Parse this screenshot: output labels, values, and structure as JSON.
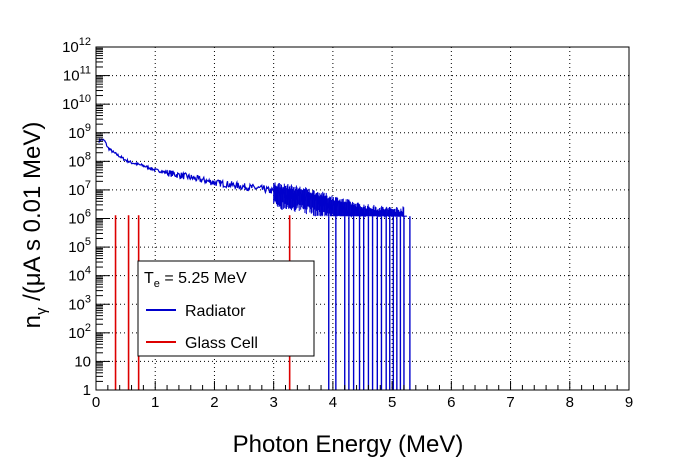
{
  "chart_data": {
    "type": "histogram",
    "xlabel": "Photon Energy (MeV)",
    "ylabel_parts": [
      "n",
      "γ",
      " /(μA s 0.01 MeV)"
    ],
    "xlim": [
      0,
      9
    ],
    "ylim": [
      1,
      1000000000000
    ],
    "yscale": "log",
    "grid": true,
    "x_ticks": [
      0,
      1,
      2,
      3,
      4,
      5,
      6,
      7,
      8,
      9
    ],
    "y_ticks": [
      {
        "value": 1,
        "base": "1",
        "exp": ""
      },
      {
        "value": 10,
        "base": "10",
        "exp": ""
      },
      {
        "value": 100,
        "base": "10",
        "exp": "2"
      },
      {
        "value": 1000,
        "base": "10",
        "exp": "3"
      },
      {
        "value": 10000,
        "base": "10",
        "exp": "4"
      },
      {
        "value": 100000,
        "base": "10",
        "exp": "5"
      },
      {
        "value": 1000000,
        "base": "10",
        "exp": "6"
      },
      {
        "value": 10000000,
        "base": "10",
        "exp": "7"
      },
      {
        "value": 100000000,
        "base": "10",
        "exp": "8"
      },
      {
        "value": 1000000000,
        "base": "10",
        "exp": "9"
      },
      {
        "value": 10000000000,
        "base": "10",
        "exp": "10"
      },
      {
        "value": 100000000000,
        "base": "10",
        "exp": "11"
      },
      {
        "value": 1000000000000,
        "base": "10",
        "exp": "12"
      }
    ],
    "series": [
      {
        "name": "Radiator",
        "color": "#0000cc",
        "points": [
          [
            0.05,
            500000000
          ],
          [
            0.1,
            600000000
          ],
          [
            0.15,
            500000000
          ],
          [
            0.2,
            300000000
          ],
          [
            0.3,
            200000000
          ],
          [
            0.4,
            150000000
          ],
          [
            0.5,
            110000000
          ],
          [
            0.6,
            90000000
          ],
          [
            0.8,
            70000000
          ],
          [
            1.0,
            50000000
          ],
          [
            1.2,
            40000000
          ],
          [
            1.5,
            30000000
          ],
          [
            1.8,
            22000000
          ],
          [
            2.0,
            18000000
          ],
          [
            2.3,
            15000000
          ],
          [
            2.5,
            13000000
          ],
          [
            2.8,
            11000000
          ],
          [
            3.0,
            9000000
          ],
          [
            3.3,
            7000000
          ],
          [
            3.5,
            6000000
          ],
          [
            3.8,
            4000000
          ],
          [
            4.0,
            3000000
          ],
          [
            4.3,
            2000000
          ],
          [
            4.5,
            1500000
          ],
          [
            4.8,
            1300000
          ],
          [
            5.0,
            1200000
          ],
          [
            5.2,
            1200000
          ]
        ],
        "spikes": [
          3.93,
          4.05,
          4.2,
          4.27,
          4.35,
          4.45,
          4.52,
          4.6,
          4.67,
          4.75,
          4.82,
          4.9,
          4.96,
          5.02,
          5.08,
          5.14,
          5.2,
          5.3
        ],
        "spike_top": 1200000
      },
      {
        "name": "Glass Cell",
        "color": "#dd0000",
        "spikes": [
          0.33,
          0.55,
          0.72,
          3.27
        ],
        "spike_top": 1300000
      }
    ],
    "legend": {
      "title_main": "T",
      "title_sub": "e",
      "title_rest": " = 5.25 MeV",
      "entries": [
        "Radiator",
        "Glass Cell"
      ],
      "position": "lower-left"
    }
  }
}
